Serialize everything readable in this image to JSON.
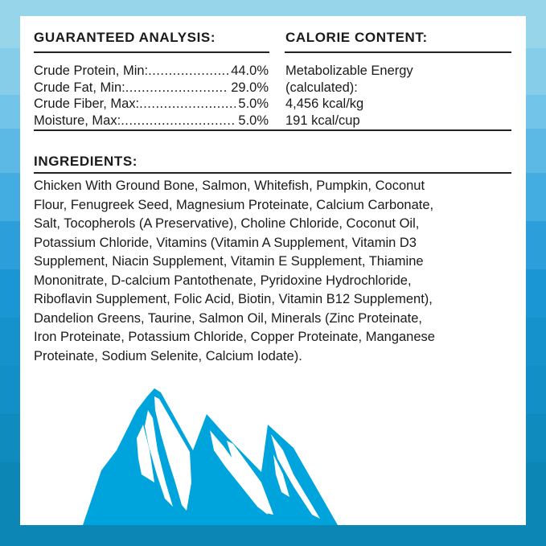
{
  "guaranteed_analysis": {
    "heading": "GUARANTEED ANALYSIS:",
    "rows": [
      {
        "label": "Crude Protein, Min:",
        "value": "44.0%"
      },
      {
        "label": "Crude Fat, Min:",
        "value": "29.0%"
      },
      {
        "label": "Crude Fiber, Max:",
        "value": "5.0%"
      },
      {
        "label": "Moisture, Max:",
        "value": "5.0%"
      }
    ]
  },
  "calorie_content": {
    "heading": "CALORIE CONTENT:",
    "lines": [
      "Metabolizable Energy",
      "(calculated):",
      "4,456 kcal/kg",
      "191 kcal/cup"
    ]
  },
  "ingredients": {
    "heading": "INGREDIENTS:",
    "lines": [
      "Chicken With Ground Bone, Salmon, Whitefish, Pumpkin, Coconut",
      "Flour, Fenugreek Seed, Magnesium Proteinate, Calcium Carbonate,",
      "Salt, Tocopherols (A Preservative), Choline Chloride, Coconut Oil,",
      "Potassium Chloride, Vitamins (Vitamin A Supplement, Vitamin D3",
      "Supplement, Niacin Supplement, Vitamin E Supplement, Thiamine",
      "Mononitrate, D-calcium Pantothenate, Pyridoxine Hydrochloride,",
      "Riboflavin Supplement, Folic Acid, Biotin, Vitamin B12 Supplement),",
      "Dandelion Greens, Taurine, Salmon Oil, Minerals (Zinc Proteinate,",
      "Iron Proteinate, Potassium Chloride, Copper Proteinate, Manganese",
      "Proteinate, Sodium Selenite, Calcium Iodate)."
    ]
  },
  "colors": {
    "mountain": "#00a4dc",
    "panel": "#ffffff",
    "text": "#1a1a1a"
  },
  "icons": {
    "illustration": "mountain-range-icon"
  }
}
